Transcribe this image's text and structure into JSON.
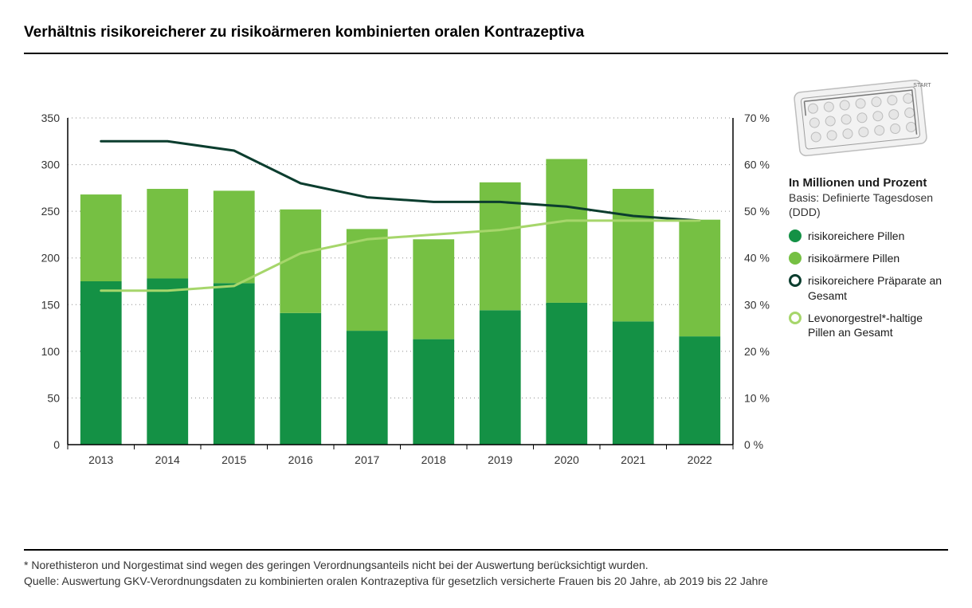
{
  "title": "Verhältnis risikoreicherer zu risikoärmeren kombinierten oralen Kontrazeptiva",
  "chart": {
    "type": "stacked-bar-with-lines",
    "background_color": "#ffffff",
    "grid_color": "#8a8a8a",
    "grid_dash": "1,4",
    "axis_color": "#000000",
    "axis_width": 1.5,
    "label_color": "#333333",
    "label_fontsize": 14,
    "categories": [
      "2013",
      "2014",
      "2015",
      "2016",
      "2017",
      "2018",
      "2019",
      "2020",
      "2021",
      "2022"
    ],
    "y_left": {
      "min": 0,
      "max": 350,
      "ticks": [
        0,
        50,
        100,
        150,
        200,
        250,
        300,
        350
      ]
    },
    "y_right": {
      "min": 0,
      "max": 70,
      "ticks_pct": [
        0,
        10,
        20,
        30,
        40,
        50,
        60,
        70
      ]
    },
    "bars": {
      "width_fraction": 0.62,
      "series": [
        {
          "name": "risikoreichere Pillen",
          "color": "#149145",
          "values": [
            175,
            178,
            173,
            141,
            122,
            113,
            144,
            152,
            132,
            116
          ]
        },
        {
          "name": "risikoärmere Pillen",
          "color": "#76c043",
          "values": [
            93,
            96,
            99,
            111,
            109,
            107,
            137,
            154,
            142,
            125
          ]
        }
      ]
    },
    "lines": [
      {
        "name": "risikoreichere Präparate an Gesamt",
        "color": "#0b3d2e",
        "width": 3,
        "values_pct": [
          65,
          65,
          63,
          56,
          53,
          52,
          52,
          51,
          49,
          48
        ]
      },
      {
        "name": "Levonorgestrel*-haltige Pillen an Gesamt",
        "color": "#a6d66b",
        "width": 3,
        "values_pct": [
          33,
          33,
          34,
          41,
          44,
          45,
          46,
          48,
          48,
          48
        ]
      }
    ]
  },
  "legend": {
    "heading": "In Millionen und Prozent",
    "subheading": "Basis: Definierte Tagesdosen (DDD)",
    "items": [
      {
        "kind": "fill",
        "color": "#149145",
        "label": "risikoreichere Pillen"
      },
      {
        "kind": "fill",
        "color": "#76c043",
        "label": "risikoärmere Pillen"
      },
      {
        "kind": "ring",
        "color": "#0b3d2e",
        "label": "risikoreichere Präparate an Gesamt"
      },
      {
        "kind": "ring",
        "color": "#a6d66b",
        "label": "Levonorgestrel*-haltige Pillen an Gesamt"
      }
    ]
  },
  "footnotes": {
    "note": "* Norethisteron und Norgestimat sind wegen des geringen Verordnungsanteils nicht bei der Auswertung berücksichtigt wurden.",
    "source": "Quelle: Auswertung GKV-Verordnungsdaten zu kombinierten oralen Kontrazeptiva für gesetzlich versicherte Frauen bis 20 Jahre, ab 2019 bis 22 Jahre"
  },
  "illustration": {
    "name": "pill-blister-pack"
  }
}
